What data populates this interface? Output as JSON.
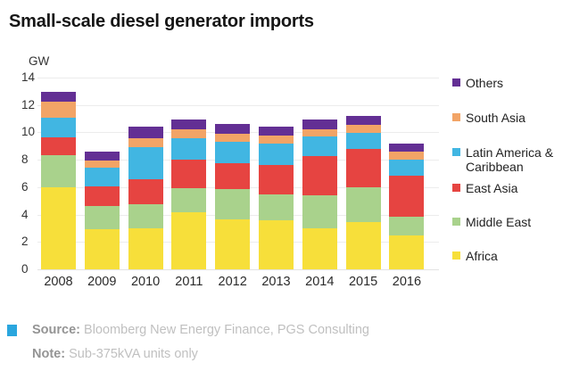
{
  "title": "Small-scale diesel generator imports",
  "y_axis": {
    "unit": "GW",
    "ticks": [
      14,
      12,
      10,
      8,
      6,
      4,
      2,
      0
    ]
  },
  "chart_data": {
    "type": "bar",
    "stacked": true,
    "title": "Small-scale diesel generator imports",
    "ylabel": "GW",
    "ylim": [
      0,
      14
    ],
    "grid": true,
    "legend_position": "right",
    "categories": [
      "2008",
      "2009",
      "2010",
      "2011",
      "2012",
      "2013",
      "2014",
      "2015",
      "2016"
    ],
    "series": [
      {
        "name": "Africa",
        "color": "#f7df3a",
        "values": [
          6.0,
          2.95,
          3.0,
          4.2,
          3.65,
          3.55,
          3.0,
          3.45,
          2.45
        ]
      },
      {
        "name": "Middle East",
        "color": "#a9d28c",
        "values": [
          2.35,
          1.7,
          1.75,
          1.75,
          2.2,
          1.9,
          2.4,
          2.55,
          1.4
        ]
      },
      {
        "name": "East Asia",
        "color": "#e64441",
        "values": [
          1.3,
          1.4,
          1.85,
          2.05,
          1.9,
          2.2,
          2.9,
          2.8,
          3.0
        ]
      },
      {
        "name": "Latin America & Caribbean",
        "color": "#41b6e2",
        "values": [
          1.45,
          1.35,
          2.3,
          1.6,
          1.55,
          1.55,
          1.4,
          1.15,
          1.15
        ]
      },
      {
        "name": "South Asia",
        "color": "#f2a466",
        "values": [
          1.15,
          0.55,
          0.7,
          0.6,
          0.6,
          0.6,
          0.55,
          0.6,
          0.6
        ]
      },
      {
        "name": "Others",
        "color": "#632f94",
        "values": [
          0.7,
          0.65,
          0.85,
          0.75,
          0.7,
          0.65,
          0.7,
          0.65,
          0.6
        ]
      }
    ]
  },
  "legend": {
    "items": [
      {
        "label": "Others",
        "color": "#632f94"
      },
      {
        "label": "South Asia",
        "color": "#f2a466"
      },
      {
        "label": "Latin America & Caribbean",
        "color": "#41b6e2"
      },
      {
        "label": "East Asia",
        "color": "#e64441"
      },
      {
        "label": "Middle East",
        "color": "#a9d28c"
      },
      {
        "label": "Africa",
        "color": "#f7df3a"
      }
    ]
  },
  "footer": {
    "bullet_color": "#2aa6de",
    "source_label": "Source:",
    "source_text": "Bloomberg New Energy Finance, PGS Consulting",
    "note_label": "Note:",
    "note_text": "Sub-375kVA units only"
  }
}
